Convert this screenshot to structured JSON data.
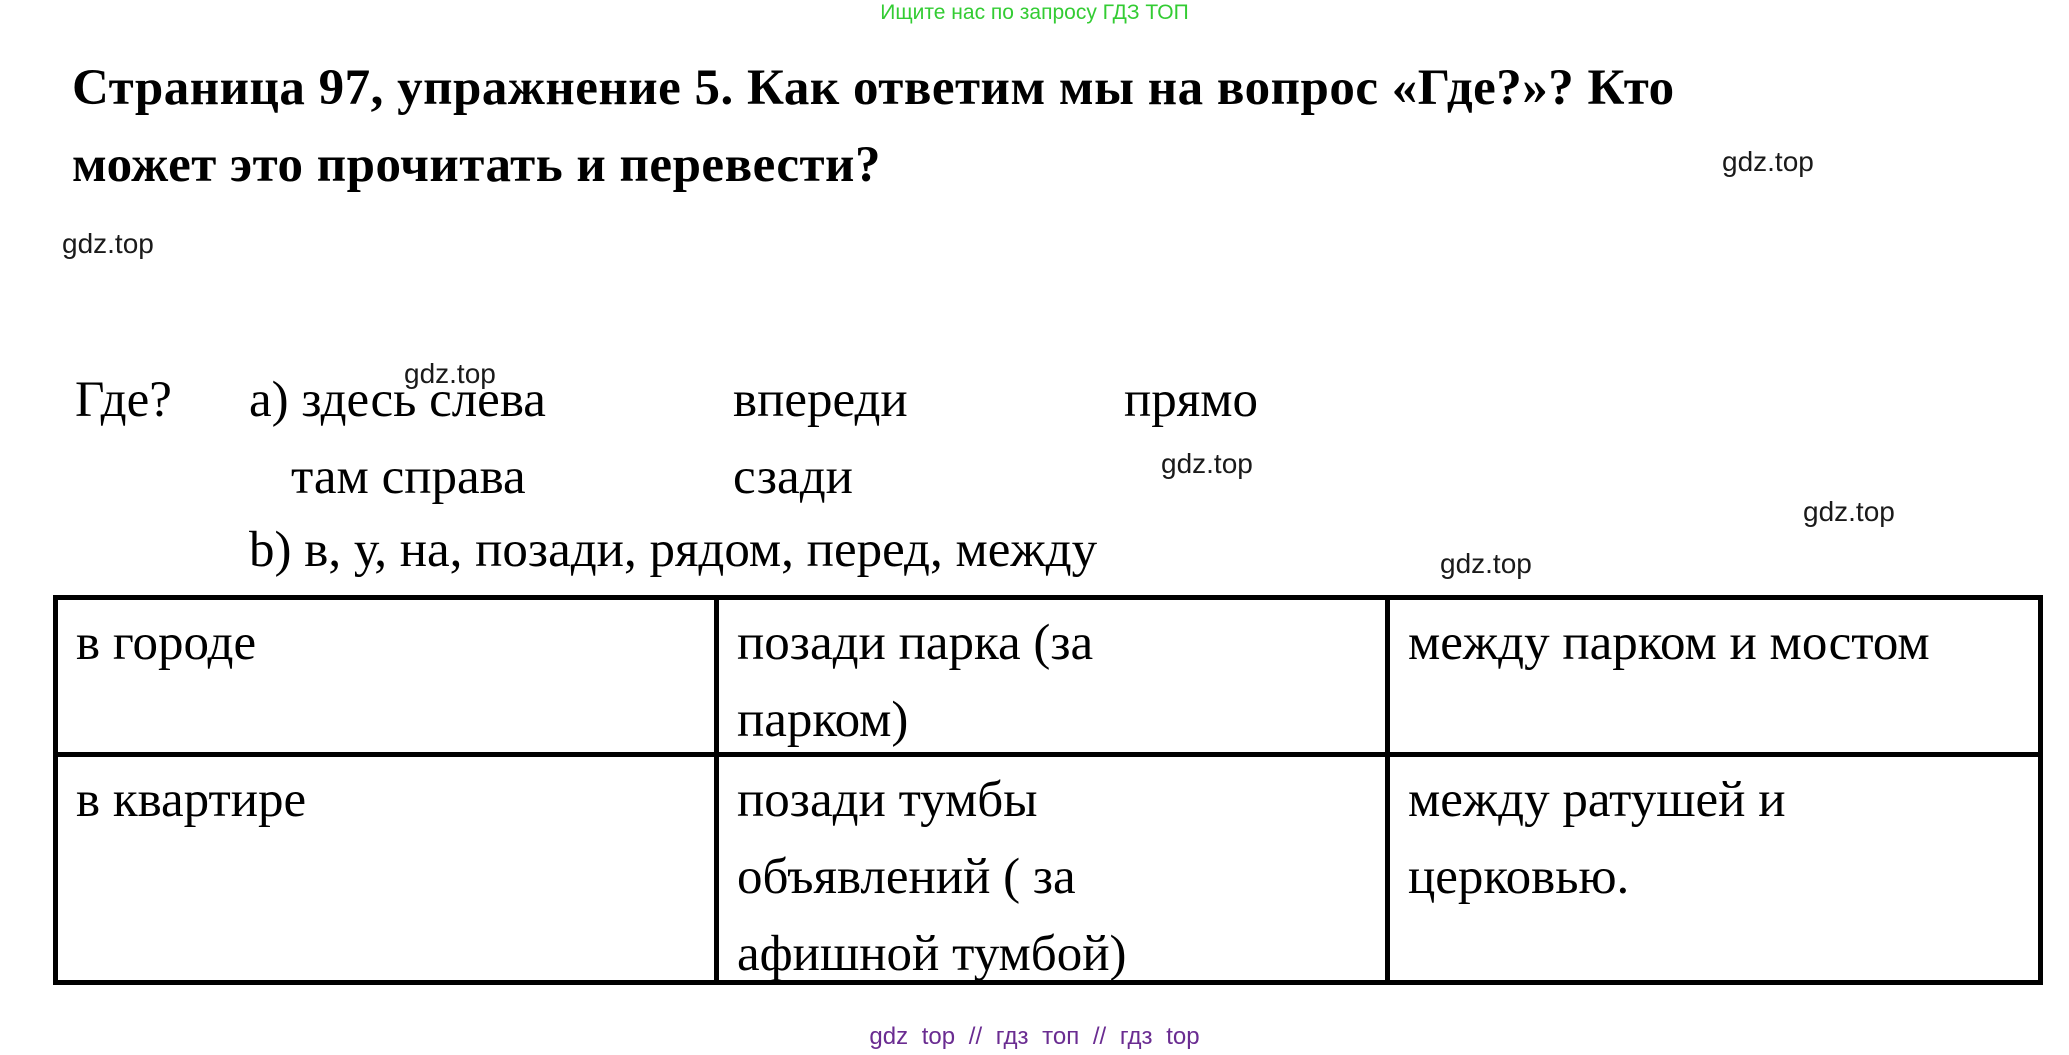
{
  "page": {
    "promo_top": "Ищите нас по запросу ГДЗ ТОП",
    "heading": "Страница 97, упражнение 5. Как ответим мы на вопрос «Где?»? Кто\nможет это прочитать и перевести?",
    "footer": "gdz top // гдз топ // гдз top",
    "colors": {
      "promo_green": "#33cc33",
      "footer_purple": "#6a2c91",
      "text_black": "#000000"
    }
  },
  "watermark": {
    "label": "gdz.top"
  },
  "exercise": {
    "question_word": "Где?",
    "a_line1_part1": "а) здесь слева",
    "a_line1_part2": "впереди",
    "a_line1_part3": "прямо",
    "a_line2_part1": "там справа",
    "a_line2_part2": "сзади",
    "b_line": "b) в, у, на, позади, рядом, перед, между"
  },
  "table": {
    "rows": [
      [
        "в городе",
        "позади парка (за\nпарком)",
        "между парком и мостом"
      ],
      [
        "в квартире",
        "позади тумбы\nобъявлений ( за\nафишной тумбой)",
        "между ратушей и\nцерковью."
      ]
    ]
  }
}
